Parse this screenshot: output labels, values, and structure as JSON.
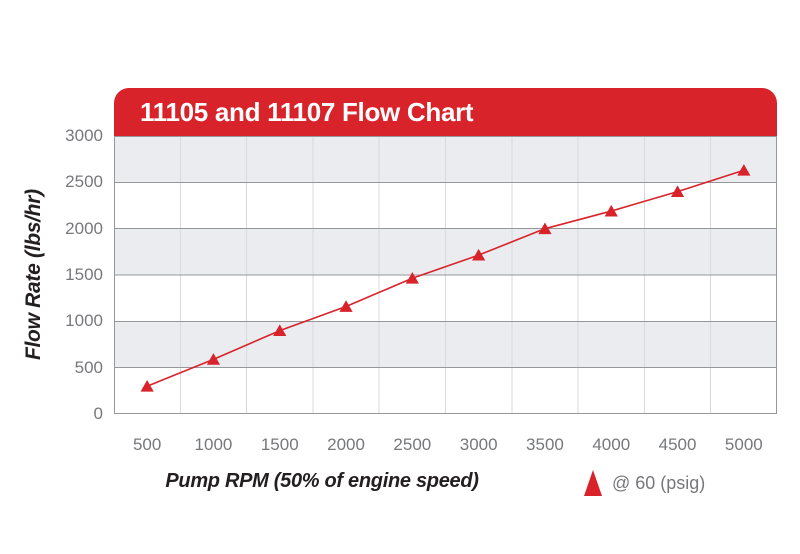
{
  "colors": {
    "red": "#D8232A",
    "band_gray": "#EAECEF",
    "h_line": "#96979A",
    "v_line": "#D8D9DC",
    "tick_text": "#77787B",
    "title_text": "#231F20"
  },
  "chart_data": {
    "type": "line",
    "title": "11105 and 11107 Flow Chart",
    "xlabel": "Pump RPM (50% of engine speed)",
    "ylabel": "Flow Rate (lbs/hr)",
    "x": [
      500,
      1000,
      1500,
      2000,
      2500,
      3000,
      3500,
      4000,
      4500,
      5000
    ],
    "series": [
      {
        "name": "@ 60 (psig)",
        "marker": "triangle",
        "color": "#D8232A",
        "values": [
          300,
          590,
          900,
          1160,
          1465,
          1715,
          2000,
          2190,
          2400,
          2630
        ]
      }
    ],
    "ylim": [
      0,
      3000
    ],
    "y_ticks": [
      0,
      500,
      1000,
      1500,
      2000,
      2500,
      3000
    ],
    "x_ticks": [
      500,
      1000,
      1500,
      2000,
      2500,
      3000,
      3500,
      4000,
      4500,
      5000
    ],
    "grid": {
      "horizontal_bands": "alternating gray/white every 500 units",
      "horizontal_lines_every": 500,
      "vertical_lines": "between x ticks"
    },
    "legend_position": "below-right"
  }
}
